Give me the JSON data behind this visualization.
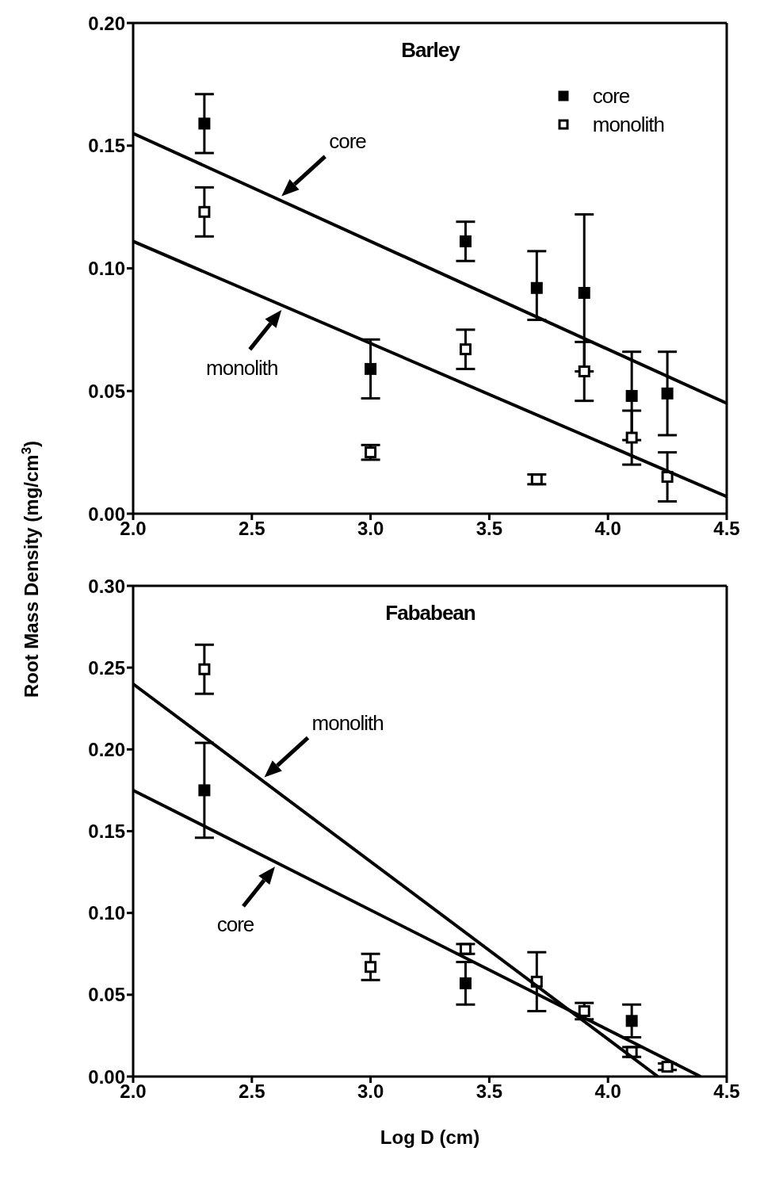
{
  "chart_data": [
    {
      "type": "scatter",
      "title": "Barley",
      "ylabel": "Root Mass Density (mg/cm$^{3}$)",
      "legend": "top right",
      "xlim": [
        2.0,
        4.5
      ],
      "xticks": [
        {
          "value": 2,
          "label": "2.0"
        },
        {
          "value": 2.5,
          "label": "2.5"
        },
        {
          "value": 3,
          "label": "3.0"
        },
        {
          "value": 3.5,
          "label": "3.5"
        },
        {
          "value": 4,
          "label": "4.0"
        },
        {
          "value": 4.5,
          "label": "4.5"
        }
      ],
      "ylim": [
        0,
        0.2
      ],
      "yticks": [
        {
          "value": 0,
          "label": "0.00"
        },
        {
          "value": 0.05,
          "label": "0.05"
        },
        {
          "value": 0.1,
          "label": "0.10"
        },
        {
          "value": 0.15,
          "label": "0.15"
        },
        {
          "value": 0.2,
          "label": "0.20"
        }
      ],
      "series": [
        {
          "name": "core",
          "color": "#000000",
          "marker": "square",
          "x": [
            2.3,
            3.0,
            3.4,
            3.7,
            3.9,
            4.1,
            4.25
          ],
          "values": [
            0.159,
            0.059,
            0.111,
            0.092,
            0.09,
            0.048,
            0.049
          ],
          "errors": [
            0.012,
            0.012,
            0.008,
            [
              0.079,
              0.107
            ],
            0.032,
            0.018,
            0.017
          ]
        },
        {
          "name": "monolith",
          "color": "#ffffff",
          "marker": "square",
          "x": [
            2.3,
            3.0,
            3.4,
            3.7,
            3.9,
            4.1,
            4.25
          ],
          "values": [
            0.123,
            0.025,
            0.067,
            0.014,
            0.058,
            0.031,
            0.015
          ],
          "errors": [
            0.01,
            0.003,
            0.008,
            0.002,
            0.012,
            0.011,
            0.01
          ]
        },
        {
          "type": "line",
          "color": "#000000",
          "marker": "none",
          "x": [
            2.0,
            4.5
          ],
          "values": [
            0.155,
            0.045
          ]
        },
        {
          "type": "line",
          "color": "#000000",
          "marker": "none",
          "x": [
            2.0,
            4.5
          ],
          "values": [
            0.111,
            0.007
          ]
        }
      ],
      "annotations": [
        "core",
        "monolith"
      ]
    },
    {
      "type": "scatter",
      "title": "Fababean",
      "xlabel": "Log D (cm)",
      "xlim": [
        2.0,
        4.5
      ],
      "xticks": [
        {
          "value": 2,
          "label": "2.0"
        },
        {
          "value": 2.5,
          "label": "2.5"
        },
        {
          "value": 3,
          "label": "3.0"
        },
        {
          "value": 3.5,
          "label": "3.5"
        },
        {
          "value": 4,
          "label": "4.0"
        },
        {
          "value": 4.5,
          "label": "4.5"
        }
      ],
      "ylim": [
        0,
        0.3
      ],
      "yticks": [
        {
          "value": 0,
          "label": "0.00"
        },
        {
          "value": 0.05,
          "label": "0.05"
        },
        {
          "value": 0.1,
          "label": "0.10"
        },
        {
          "value": 0.15,
          "label": "0.15"
        },
        {
          "value": 0.2,
          "label": "0.20"
        },
        {
          "value": 0.25,
          "label": "0.25"
        },
        {
          "value": 0.3,
          "label": "0.30"
        }
      ],
      "series": [
        {
          "color": "#000000",
          "marker": "square",
          "x": [
            2.3,
            3.4,
            4.1
          ],
          "values": [
            0.175,
            0.057,
            0.034
          ],
          "errors": [
            0.029,
            0.013,
            0.01
          ]
        },
        {
          "color": "#ffffff",
          "marker": "square",
          "x": [
            2.3,
            3.0,
            3.4,
            3.7,
            3.9,
            4.1,
            4.25
          ],
          "values": [
            0.249,
            0.067,
            0.078,
            0.058,
            0.04,
            0.015,
            0.006
          ],
          "errors": [
            0.015,
            0.008,
            0.003,
            0.018,
            0.005,
            0.003,
            0.002
          ]
        },
        {
          "type": "line",
          "color": "#000000",
          "marker": "none",
          "x": [
            2.0,
            4.21
          ],
          "values": [
            0.24,
            0
          ]
        },
        {
          "type": "line",
          "color": "#000000",
          "marker": "none",
          "x": [
            2.0,
            4.39
          ],
          "values": [
            0.175,
            0
          ]
        }
      ],
      "annotations": [
        "monolith",
        "core"
      ]
    }
  ]
}
